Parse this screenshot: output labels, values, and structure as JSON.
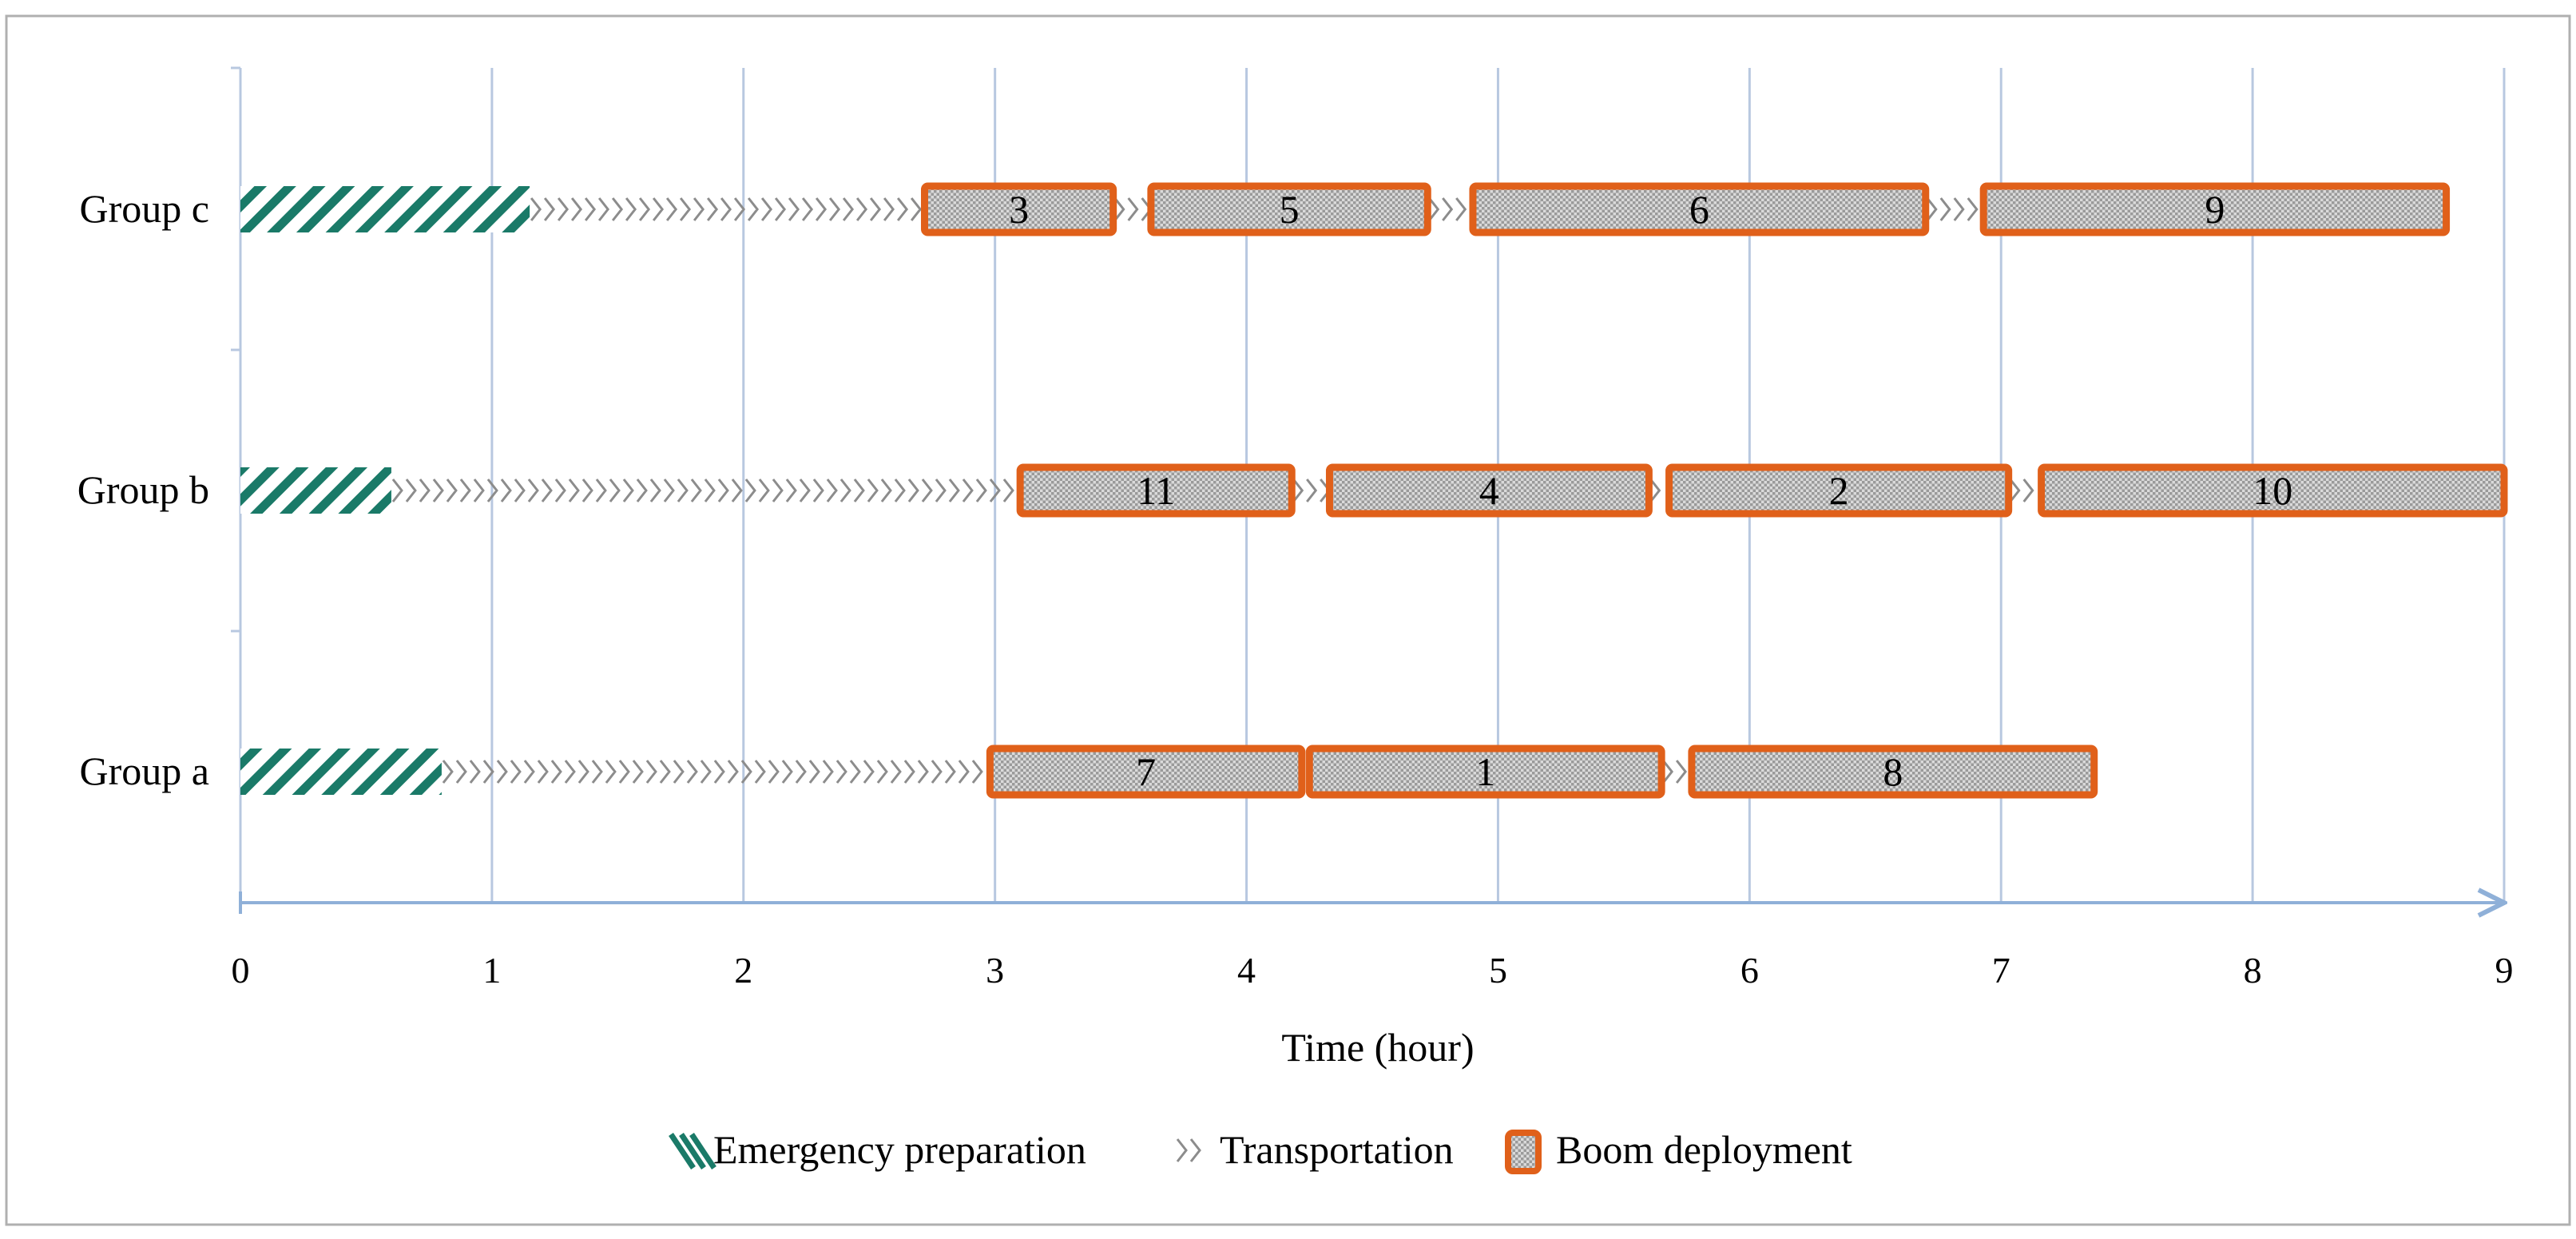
{
  "chart_data": {
    "type": "gantt",
    "title": "",
    "xlabel": "Time (hour)",
    "ylabel": "",
    "xlim": [
      0,
      9
    ],
    "x_ticks": [
      "0",
      "1",
      "2",
      "3",
      "4",
      "5",
      "6",
      "7",
      "8",
      "9"
    ],
    "grid": "vertical",
    "legend_position": "bottom",
    "legend": [
      {
        "key": "preparation",
        "label": "Emergency preparation"
      },
      {
        "key": "transport",
        "label": "Transportation"
      },
      {
        "key": "boom",
        "label": "Boom deployment"
      }
    ],
    "rows": [
      {
        "label": "Group c",
        "preparation": [
          0,
          1.15
        ],
        "transport": [
          [
            1.15,
            2.72
          ],
          [
            3.47,
            3.62
          ],
          [
            4.72,
            4.9
          ],
          [
            6.7,
            6.93
          ]
        ],
        "tasks": [
          {
            "label": "3",
            "start": 2.72,
            "end": 3.47
          },
          {
            "label": "5",
            "start": 3.62,
            "end": 4.72
          },
          {
            "label": "6",
            "start": 4.9,
            "end": 6.7
          },
          {
            "label": "9",
            "start": 6.93,
            "end": 8.77
          }
        ]
      },
      {
        "label": "Group b",
        "preparation": [
          0,
          0.6
        ],
        "transport": [
          [
            0.6,
            3.1
          ],
          [
            4.18,
            4.33
          ],
          [
            5.6,
            5.68
          ],
          [
            7.03,
            7.16
          ]
        ],
        "tasks": [
          {
            "label": "11",
            "start": 3.1,
            "end": 4.18
          },
          {
            "label": "4",
            "start": 4.33,
            "end": 5.6
          },
          {
            "label": "2",
            "start": 5.68,
            "end": 7.03
          },
          {
            "label": "10",
            "start": 7.16,
            "end": 9.0
          }
        ]
      },
      {
        "label": "Group a",
        "preparation": [
          0,
          0.8
        ],
        "transport": [
          [
            0.8,
            2.98
          ],
          [
            5.65,
            5.77
          ]
        ],
        "tasks": [
          {
            "label": "7",
            "start": 2.98,
            "end": 4.22
          },
          {
            "label": "1",
            "start": 4.25,
            "end": 5.65
          },
          {
            "label": "8",
            "start": 5.77,
            "end": 7.37
          }
        ]
      }
    ],
    "colors": {
      "preparation": "#1a7a68",
      "transport": "#8c8c8c",
      "boom_border": "#e0601a",
      "boom_fill": "#d0d0d0",
      "grid": "#b8c8e0",
      "axis": "#8fb0d8",
      "frame": "#b0b0b0"
    }
  }
}
